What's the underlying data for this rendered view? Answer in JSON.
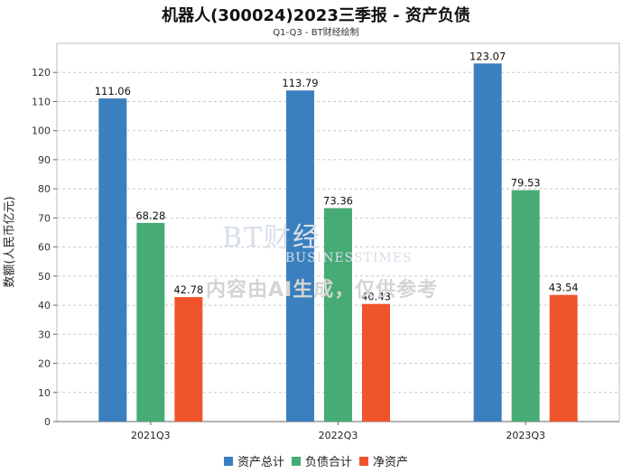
{
  "chart_data": {
    "type": "bar",
    "title": "机器人(300024)2023三季报 - 资产负债",
    "subtitle": "Q1-Q3 - BT财经绘制",
    "xlabel": "",
    "ylabel": "数额(人民币亿元)",
    "ylim": [
      0,
      130
    ],
    "yticks": [
      0,
      10,
      20,
      30,
      40,
      50,
      60,
      70,
      80,
      90,
      100,
      110,
      120
    ],
    "categories": [
      "2021Q3",
      "2022Q3",
      "2023Q3"
    ],
    "series": [
      {
        "name": "资产总计",
        "color": "#3a80bf",
        "values": [
          111.06,
          113.79,
          123.07
        ]
      },
      {
        "name": "负债合计",
        "color": "#46ab75",
        "values": [
          68.28,
          73.36,
          79.53
        ]
      },
      {
        "name": "净资产",
        "color": "#f0542a",
        "values": [
          42.78,
          40.43,
          43.54
        ]
      }
    ],
    "legend": "bottom-center",
    "grid": true
  },
  "watermark": {
    "logo_main": "BT财经",
    "logo_sub": "BUSINESSTIMES",
    "note": "内容由AI生成，仅供参考"
  }
}
